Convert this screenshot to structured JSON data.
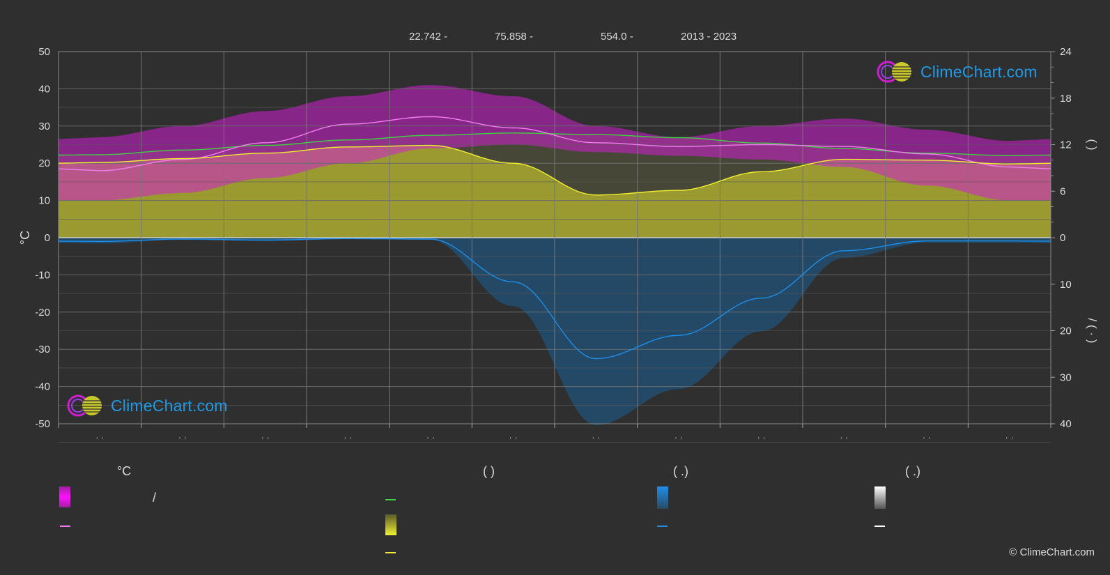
{
  "header": {
    "lat": "22.742 -",
    "lon": "75.858 -",
    "elevation": "554.0 -",
    "years": "2013 - 2023"
  },
  "axes": {
    "left_label": "°C",
    "left_ticks": [
      "50",
      "40",
      "30",
      "20",
      "10",
      "0",
      "-10",
      "-20",
      "-30",
      "-40",
      "-50"
    ],
    "right_ticks_top": [
      "24",
      "18",
      "12",
      "6",
      "0"
    ],
    "right_ticks_bottom": [
      "10",
      "20",
      "30",
      "40"
    ],
    "right_label_upper": "(          )",
    "right_label_lower": "/          (  ·  )",
    "month_ticks": [
      "· ·",
      "· ·",
      "· ·",
      "· ·",
      "· ·",
      "· ·",
      "· ·",
      "· ·",
      "· ·",
      "· ·",
      "· ·",
      "· ·"
    ]
  },
  "legend": {
    "col1_title": "°C",
    "col1_slash": "/",
    "col2_title": "(          )",
    "col3_title": "(    .)",
    "col4_title": "(    .)"
  },
  "branding": {
    "logo_text": "ClimeChart.com",
    "copyright": "© ClimeChart.com"
  },
  "colors": {
    "background": "#2f2f2f",
    "temp_band": "#d21ed2",
    "temp_band_low": "#e07ab0",
    "sunshine_band": "#a9a930",
    "precip_band": "#1a5f95",
    "daylight_line": "#3fd13f",
    "sunshine_line": "#f0f030",
    "temp_mean_line": "#f07ef0",
    "precip_line": "#1e8ee8",
    "snow_line": "#ffffff",
    "logo_blue": "#1e9be8"
  },
  "chart_data": {
    "type": "line",
    "x_unit": "month",
    "x": [
      0.5,
      1.5,
      2.5,
      3.5,
      4.5,
      5.5,
      6.5,
      7.5,
      8.5,
      9.5,
      10.5,
      11.5
    ],
    "temp_ylim": [
      -50,
      50
    ],
    "hours_ylim": [
      0,
      24
    ],
    "precip_ylim": [
      0,
      40
    ],
    "series": [
      {
        "key": "temp_mean",
        "unit": "°C",
        "values": [
          18,
          21,
          25.5,
          30.5,
          32.5,
          29.5,
          25.5,
          24.5,
          25,
          24.5,
          22.5,
          19
        ]
      },
      {
        "key": "temp_max_band",
        "unit": "°C",
        "values": [
          27,
          30,
          34,
          38,
          41,
          38,
          30,
          27,
          30,
          32,
          29,
          26
        ]
      },
      {
        "key": "temp_min_band",
        "unit": "°C",
        "values": [
          10,
          12,
          16,
          20,
          24,
          25,
          23,
          22,
          21,
          19,
          14,
          10
        ]
      },
      {
        "key": "daylight",
        "unit": "h",
        "values": [
          10.7,
          11.3,
          11.9,
          12.6,
          13.2,
          13.5,
          13.3,
          12.9,
          12.2,
          11.5,
          10.9,
          10.6
        ]
      },
      {
        "key": "sunshine",
        "unit": "h",
        "values": [
          9.7,
          10.2,
          10.9,
          11.7,
          11.9,
          9.6,
          5.5,
          6.1,
          8.5,
          10.1,
          10,
          9.5
        ]
      },
      {
        "key": "precipitation",
        "unit": "mm",
        "values": [
          0.8,
          0.3,
          0.5,
          0.2,
          0.3,
          9.5,
          26,
          21,
          13,
          2.8,
          0.7,
          0.7
        ]
      }
    ]
  }
}
